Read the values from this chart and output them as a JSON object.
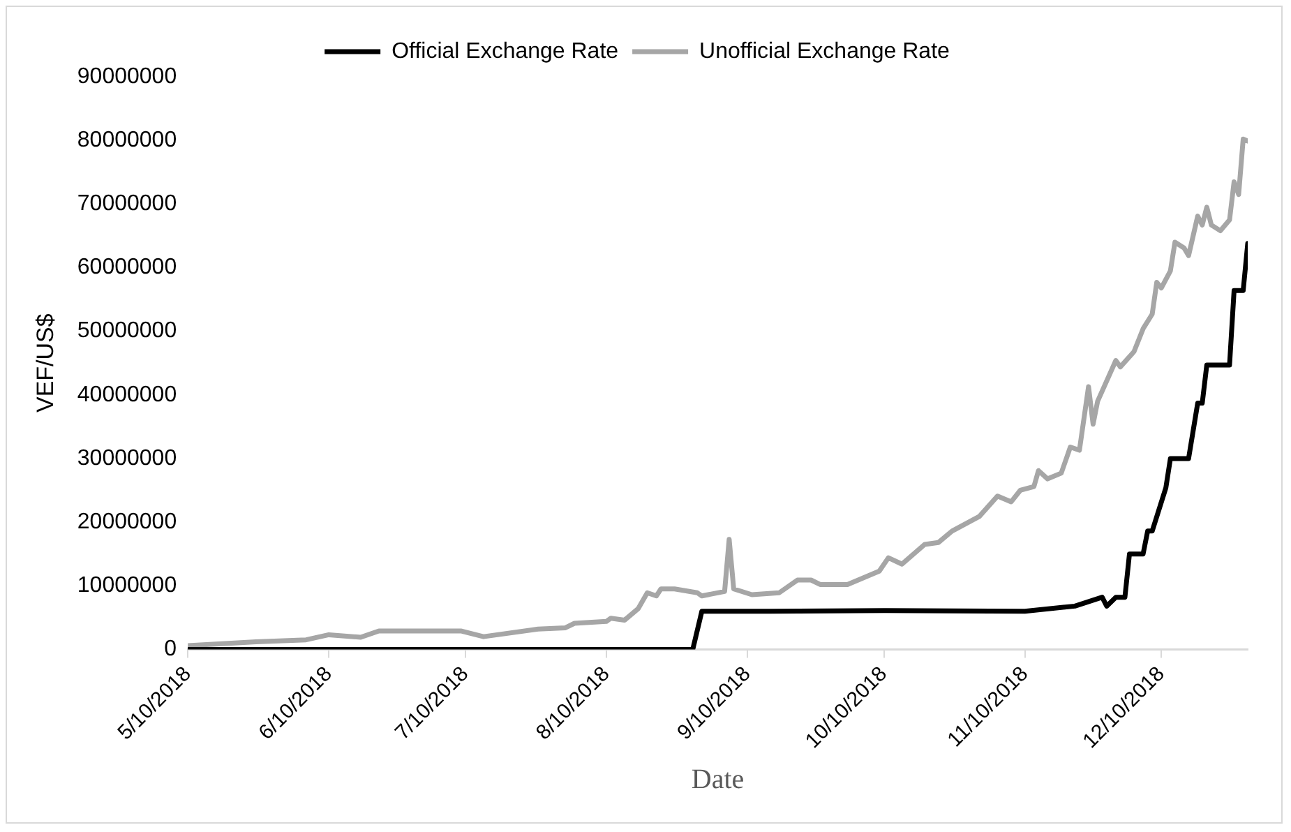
{
  "chart_data": {
    "type": "line",
    "xlabel": "Date",
    "ylabel": "VEF/US$",
    "legend": "top",
    "grid": false,
    "marker": "none",
    "line_style": "solid",
    "xlim": [
      "2018-05-10",
      "2018-12-29"
    ],
    "xticks": [
      {
        "value": "2018-05-10",
        "label": "5/10/2018"
      },
      {
        "value": "2018-06-10",
        "label": "6/10/2018"
      },
      {
        "value": "2018-07-10",
        "label": "7/10/2018"
      },
      {
        "value": "2018-08-10",
        "label": "8/10/2018"
      },
      {
        "value": "2018-09-10",
        "label": "9/10/2018"
      },
      {
        "value": "2018-10-10",
        "label": "10/10/2018"
      },
      {
        "value": "2018-11-10",
        "label": "11/10/2018"
      },
      {
        "value": "2018-12-10",
        "label": "12/10/2018"
      }
    ],
    "ylim": [
      0,
      90000000
    ],
    "yticks": [
      0,
      10000000,
      20000000,
      30000000,
      40000000,
      50000000,
      60000000,
      70000000,
      80000000,
      90000000
    ],
    "series": [
      {
        "name": "Official Exchange Rate",
        "color": "#000000",
        "x": [
          "2018-05-10",
          "2018-08-29",
          "2018-08-31",
          "2018-09-15",
          "2018-10-10",
          "2018-11-10",
          "2018-11-21",
          "2018-11-27",
          "2018-11-28",
          "2018-11-30",
          "2018-12-02",
          "2018-12-03",
          "2018-12-06",
          "2018-12-07",
          "2018-12-08",
          "2018-12-11",
          "2018-12-12",
          "2018-12-16",
          "2018-12-18",
          "2018-12-19",
          "2018-12-20",
          "2018-12-25",
          "2018-12-26",
          "2018-12-28",
          "2018-12-29"
        ],
        "values": [
          0,
          0,
          6000000,
          6000000,
          6100000,
          6000000,
          6800000,
          8200000,
          6800000,
          8200000,
          8200000,
          15000000,
          15000000,
          18600000,
          18600000,
          25400000,
          30000000,
          30000000,
          38700000,
          38700000,
          44700000,
          44700000,
          56400000,
          56400000,
          63800000
        ]
      },
      {
        "name": "Unofficial Exchange Rate",
        "color": "#a6a6a6",
        "x": [
          "2018-05-10",
          "2018-05-25",
          "2018-06-05",
          "2018-06-10",
          "2018-06-17",
          "2018-06-21",
          "2018-07-09",
          "2018-07-14",
          "2018-07-26",
          "2018-08-01",
          "2018-08-03",
          "2018-08-10",
          "2018-08-11",
          "2018-08-14",
          "2018-08-17",
          "2018-08-19",
          "2018-08-21",
          "2018-08-22",
          "2018-08-25",
          "2018-08-30",
          "2018-08-31",
          "2018-09-05",
          "2018-09-06",
          "2018-09-07",
          "2018-09-11",
          "2018-09-17",
          "2018-09-21",
          "2018-09-24",
          "2018-09-26",
          "2018-10-02",
          "2018-10-09",
          "2018-10-11",
          "2018-10-14",
          "2018-10-19",
          "2018-10-22",
          "2018-10-25",
          "2018-10-31",
          "2018-11-04",
          "2018-11-07",
          "2018-11-09",
          "2018-11-12",
          "2018-11-13",
          "2018-11-15",
          "2018-11-18",
          "2018-11-20",
          "2018-11-22",
          "2018-11-24",
          "2018-11-25",
          "2018-11-26",
          "2018-11-30",
          "2018-12-01",
          "2018-12-04",
          "2018-12-06",
          "2018-12-08",
          "2018-12-09",
          "2018-12-10",
          "2018-12-12",
          "2018-12-13",
          "2018-12-15",
          "2018-12-16",
          "2018-12-18",
          "2018-12-19",
          "2018-12-20",
          "2018-12-21",
          "2018-12-23",
          "2018-12-25",
          "2018-12-26",
          "2018-12-27",
          "2018-12-28",
          "2018-12-29"
        ],
        "values": [
          600000,
          1200000,
          1500000,
          2300000,
          1900000,
          2900000,
          2900000,
          2000000,
          3200000,
          3400000,
          4100000,
          4400000,
          4900000,
          4600000,
          6400000,
          8900000,
          8400000,
          9500000,
          9500000,
          8900000,
          8400000,
          9100000,
          17300000,
          9500000,
          8600000,
          8900000,
          10900000,
          10900000,
          10200000,
          10200000,
          12300000,
          14400000,
          13400000,
          16500000,
          16800000,
          18600000,
          20900000,
          24100000,
          23200000,
          25000000,
          25600000,
          28100000,
          26800000,
          27700000,
          31800000,
          31300000,
          41300000,
          35400000,
          39000000,
          45400000,
          44400000,
          46800000,
          50400000,
          52700000,
          57700000,
          56800000,
          59500000,
          64000000,
          63100000,
          61900000,
          68100000,
          66700000,
          69500000,
          66700000,
          65800000,
          67500000,
          73500000,
          71500000,
          80200000,
          79900000
        ]
      }
    ]
  }
}
